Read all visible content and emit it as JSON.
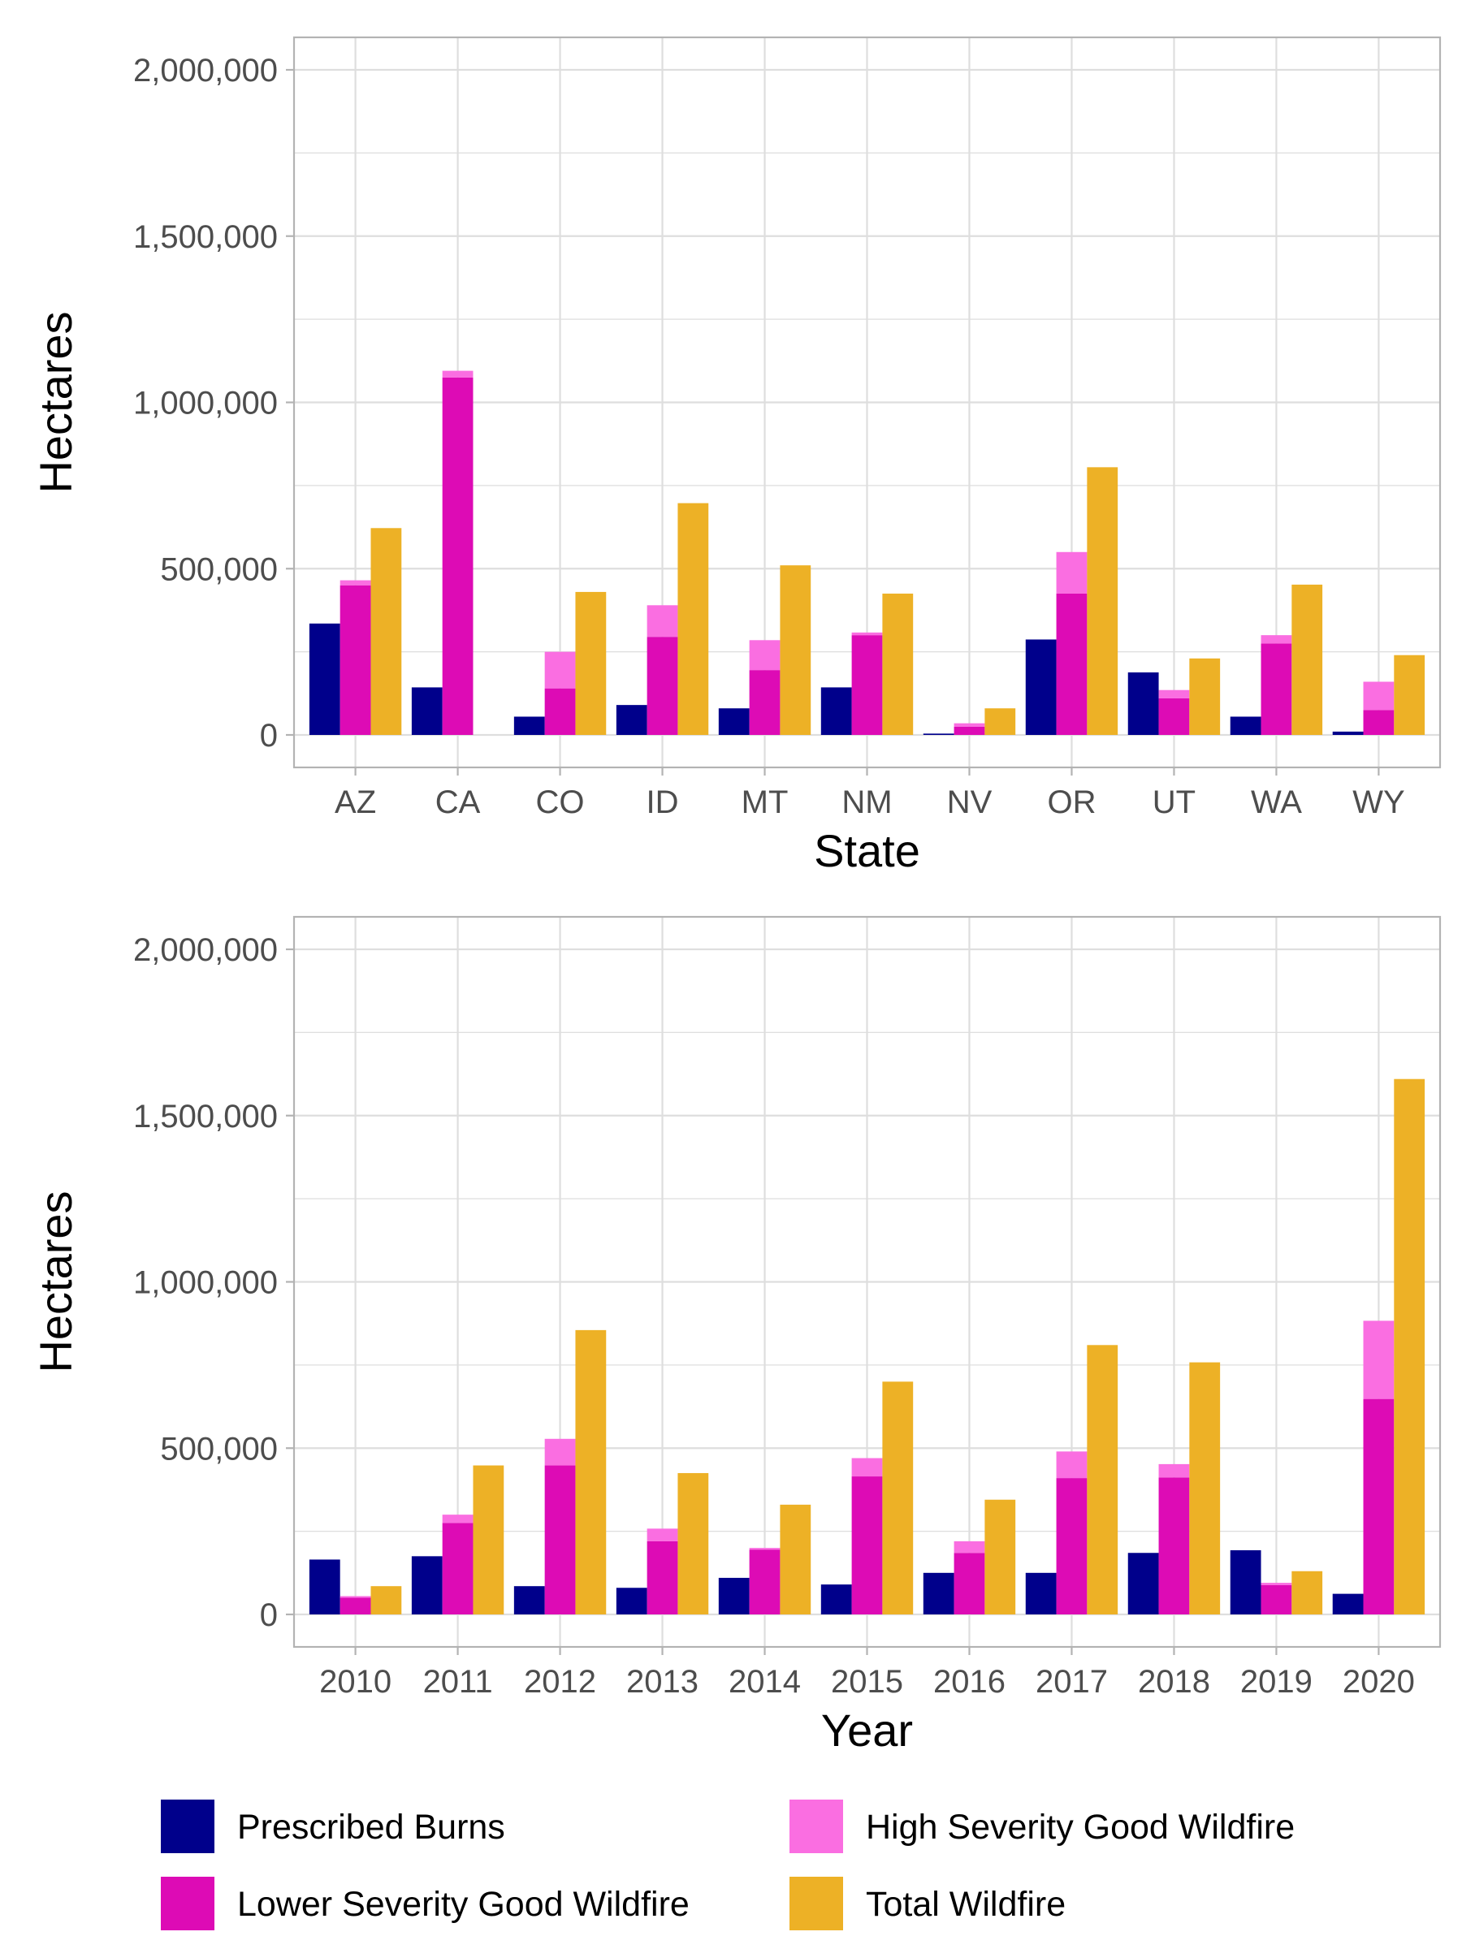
{
  "colors": {
    "prescribed": "#00008B",
    "lower_severity": "#DD0BB5",
    "high_severity": "#FA6EE1",
    "total": "#EDB126",
    "grid": "#DEDEDE",
    "panel_border": "#B3B3B3"
  },
  "legend": {
    "position": "bottom",
    "items": [
      {
        "key": "prescribed",
        "label": "Prescribed Burns",
        "color": "#00008B"
      },
      {
        "key": "high_severity",
        "label": "High Severity Good Wildfire",
        "color": "#FA6EE1"
      },
      {
        "key": "lower_severity",
        "label": "Lower Severity Good Wildfire",
        "color": "#DD0BB5"
      },
      {
        "key": "total",
        "label": "Total Wildfire",
        "color": "#EDB126"
      }
    ]
  },
  "chart_data": [
    {
      "type": "bar",
      "xlabel": "State",
      "ylabel": "Hectares",
      "ylim": [
        0,
        2000000
      ],
      "yticks": [
        "0",
        "500,000",
        "1,000,000",
        "1,500,000",
        "2,000,000"
      ],
      "ytick_values": [
        0,
        500000,
        1000000,
        1500000,
        2000000
      ],
      "grid": true,
      "categories": [
        "AZ",
        "CA",
        "CO",
        "ID",
        "MT",
        "NM",
        "NV",
        "OR",
        "UT",
        "WA",
        "WY"
      ],
      "series": [
        {
          "name": "Prescribed Burns",
          "key": "prescribed",
          "values": [
            335000,
            143000,
            55000,
            90000,
            80000,
            143000,
            4000,
            287000,
            188000,
            55000,
            10000
          ]
        },
        {
          "name": "Lower Severity Good Wildfire",
          "key": "lower_severity",
          "values": [
            450000,
            1075000,
            140000,
            295000,
            195000,
            300000,
            25000,
            425000,
            110000,
            275000,
            75000
          ]
        },
        {
          "name": "High Severity Good Wildfire",
          "key": "high_severity",
          "values": [
            15000,
            20000,
            110000,
            95000,
            90000,
            8000,
            10000,
            125000,
            25000,
            25000,
            85000
          ]
        },
        {
          "name": "Total Wildfire",
          "key": "total",
          "values": [
            622000,
            0,
            430000,
            697000,
            510000,
            425000,
            80000,
            805000,
            230000,
            452000,
            240000
          ]
        }
      ]
    },
    {
      "type": "bar",
      "xlabel": "Year",
      "ylabel": "Hectares",
      "ylim": [
        0,
        2000000
      ],
      "yticks": [
        "0",
        "500,000",
        "1,000,000",
        "1,500,000",
        "2,000,000"
      ],
      "ytick_values": [
        0,
        500000,
        1000000,
        1500000,
        2000000
      ],
      "grid": true,
      "categories": [
        "2010",
        "2011",
        "2012",
        "2013",
        "2014",
        "2015",
        "2016",
        "2017",
        "2018",
        "2019",
        "2020"
      ],
      "series": [
        {
          "name": "Prescribed Burns",
          "key": "prescribed",
          "values": [
            165000,
            175000,
            85000,
            80000,
            110000,
            90000,
            125000,
            125000,
            185000,
            193000,
            62000
          ]
        },
        {
          "name": "Lower Severity Good Wildfire",
          "key": "lower_severity",
          "values": [
            50000,
            275000,
            448000,
            220000,
            195000,
            415000,
            185000,
            410000,
            412000,
            88000,
            648000
          ]
        },
        {
          "name": "High Severity Good Wildfire",
          "key": "high_severity",
          "values": [
            5000,
            25000,
            80000,
            38000,
            5000,
            55000,
            35000,
            80000,
            40000,
            7000,
            235000
          ]
        },
        {
          "name": "Total Wildfire",
          "key": "total",
          "values": [
            85000,
            448000,
            855000,
            425000,
            330000,
            700000,
            345000,
            810000,
            758000,
            130000,
            1610000
          ]
        }
      ]
    }
  ]
}
